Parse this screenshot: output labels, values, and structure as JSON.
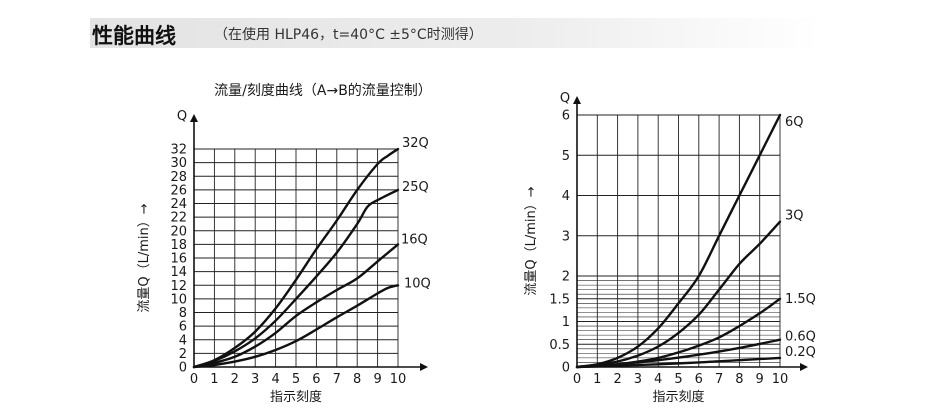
{
  "header": {
    "title": "性能曲线",
    "note": "（在使用 HLP46，t=40°C ±5°C时测得）"
  },
  "chart_data": [
    {
      "type": "line",
      "title": "流量/刻度曲线（A→B的流量控制）",
      "xlabel": "指示刻度",
      "ylabel": "流量Q（L/min）→",
      "y_axis_symbol": "Q",
      "xlim": [
        0,
        10
      ],
      "ylim": [
        0,
        32
      ],
      "x_ticks": [
        "0",
        "1",
        "2",
        "3",
        "4",
        "5",
        "6",
        "7",
        "8",
        "9",
        "10"
      ],
      "y_ticks": [
        "0",
        "2",
        "4",
        "6",
        "8",
        "10",
        "12",
        "14",
        "16",
        "18",
        "20",
        "22",
        "24",
        "26",
        "28",
        "30",
        "32"
      ],
      "grid": true,
      "series": [
        {
          "name": "10Q",
          "x": [
            0,
            1,
            2,
            3,
            4,
            5,
            6,
            7,
            8,
            9,
            9.5,
            10
          ],
          "y": [
            0,
            0.3,
            0.8,
            1.5,
            2.5,
            3.8,
            5.5,
            7.3,
            9.0,
            10.8,
            11.6,
            12
          ]
        },
        {
          "name": "16Q",
          "x": [
            0,
            1,
            2,
            3,
            4,
            5,
            6,
            7,
            8,
            9,
            10
          ],
          "y": [
            0,
            0.6,
            1.5,
            3.0,
            5.0,
            7.5,
            9.5,
            11.3,
            13.0,
            15.5,
            18
          ]
        },
        {
          "name": "25Q",
          "x": [
            0,
            1,
            2,
            3,
            4,
            5,
            6,
            7,
            8,
            8.5,
            9,
            10
          ],
          "y": [
            0,
            0.9,
            2.3,
            4.2,
            6.8,
            10.0,
            13.3,
            16.8,
            21.0,
            23.5,
            24.5,
            26
          ]
        },
        {
          "name": "32Q",
          "x": [
            0,
            1,
            2,
            3,
            4,
            5,
            6,
            7,
            8,
            9,
            9.5,
            10
          ],
          "y": [
            0,
            1.0,
            2.8,
            5.2,
            8.6,
            12.8,
            17.3,
            21.5,
            26.0,
            29.8,
            31.0,
            32
          ]
        }
      ]
    },
    {
      "type": "line",
      "title": "",
      "xlabel": "指示刻度",
      "ylabel": "流量Q（L/min）→",
      "y_axis_symbol": "Q",
      "xlim": [
        0,
        10
      ],
      "ylim": [
        0,
        6
      ],
      "scale_note": "y axis: 0–2 expanded, 2–6 compressed",
      "x_ticks": [
        "0",
        "1",
        "2",
        "3",
        "4",
        "5",
        "6",
        "7",
        "8",
        "9",
        "10"
      ],
      "y_ticks": [
        "0",
        "0.5",
        "1",
        "1.5",
        "2",
        "3",
        "4",
        "5",
        "6"
      ],
      "grid": true,
      "series": [
        {
          "name": "0.2Q",
          "x": [
            0,
            2,
            4,
            6,
            8,
            10
          ],
          "y": [
            0,
            0.03,
            0.06,
            0.1,
            0.15,
            0.2
          ]
        },
        {
          "name": "0.6Q",
          "x": [
            0,
            2,
            4,
            6,
            8,
            10
          ],
          "y": [
            0,
            0.06,
            0.15,
            0.27,
            0.42,
            0.6
          ]
        },
        {
          "name": "1.5Q",
          "x": [
            0,
            1,
            2,
            3,
            4,
            5,
            6,
            7,
            8,
            9,
            10
          ],
          "y": [
            0,
            0.02,
            0.06,
            0.12,
            0.2,
            0.32,
            0.47,
            0.65,
            0.9,
            1.18,
            1.5
          ]
        },
        {
          "name": "3Q",
          "x": [
            0,
            1,
            2,
            3,
            4,
            5,
            6,
            7,
            8,
            9,
            10
          ],
          "y": [
            0,
            0.05,
            0.12,
            0.25,
            0.45,
            0.75,
            1.15,
            1.7,
            2.3,
            2.8,
            3.35
          ]
        },
        {
          "name": "6Q",
          "x": [
            0,
            1,
            2,
            3,
            4,
            5,
            6,
            7,
            8,
            9,
            10
          ],
          "y": [
            0,
            0.06,
            0.2,
            0.45,
            0.85,
            1.4,
            2.0,
            3.0,
            4.0,
            5.0,
            6.0
          ]
        }
      ]
    }
  ]
}
